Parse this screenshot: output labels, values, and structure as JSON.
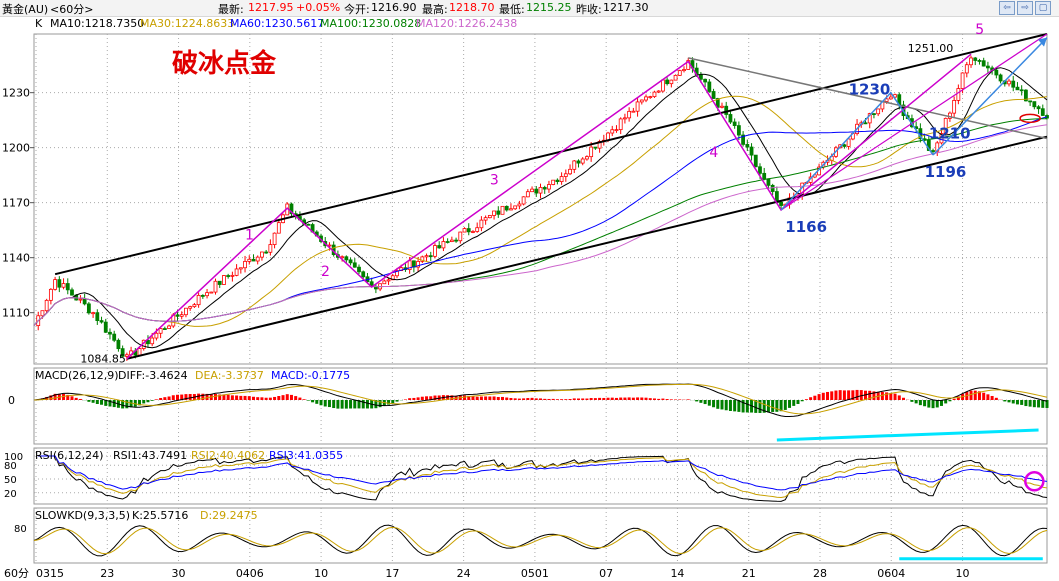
{
  "header": {
    "instrument": "黃金(AU)",
    "period": "<60分>",
    "latest_label": "最新:",
    "latest_value": "1217.95",
    "change": "+0.05%",
    "open_label": "今开:",
    "open_value": "1216.90",
    "high_label": "最高:",
    "high_value": "1218.70",
    "low_label": "最低:",
    "low_value": "1215.25",
    "prevclose_label": "昨收:",
    "prevclose_value": "1217.30"
  },
  "window_buttons": [
    "⇦",
    "⇨",
    "▢"
  ],
  "ma_legend": {
    "k": "K",
    "ma10": "MA10:1218.7350",
    "ma30": "MA30:1224.8633",
    "ma60": "MA60:1230.5617",
    "ma100": "MA100:1230.0828",
    "ma120": "MA120:1226.2438"
  },
  "overlay_title": "破冰点金",
  "macd_legend": {
    "name": "MACD(26,12,9)",
    "diff": "DIFF:-3.4624",
    "dea": "DEA:-3.3737",
    "macd": "MACD:-0.1775"
  },
  "rsi_legend": {
    "name": "RSI(6,12,24)",
    "rsi1": "RSI1:43.7491",
    "rsi2": "RSI2:40.4062",
    "rsi3": "RSI3:41.0355"
  },
  "kd_legend": {
    "name": "SLOWKD(9,3,3,5)",
    "k": "K:25.5716",
    "d": "D:29.2475"
  },
  "period_corner": "60分",
  "colors": {
    "up": "#ff0000",
    "down": "#008000",
    "ma10": "#000000",
    "ma30": "#c8a000",
    "ma60": "#0000ff",
    "ma100": "#008000",
    "ma120": "#cc66cc",
    "wave": "#cc00cc",
    "annotation_blue": "#1a3db8",
    "cyan": "#00e5ff"
  },
  "chart_data": [
    {
      "type": "candlestick",
      "title": "",
      "x_tick_labels": [
        "0315",
        "23",
        "30",
        "0406",
        "10",
        "17",
        "24",
        "0501",
        "07",
        "14",
        "21",
        "28",
        "0604",
        "10"
      ],
      "y_tick_labels": [
        "1110",
        "1140",
        "1170",
        "1200",
        "1230"
      ],
      "ylim": [
        1082,
        1262
      ],
      "price_path": [
        {
          "x": 0,
          "y": 1103
        },
        {
          "x": 5,
          "y": 1128
        },
        {
          "x": 14,
          "y": 1110
        },
        {
          "x": 20,
          "y": 1092
        },
        {
          "x": 22,
          "y": 1084.85
        },
        {
          "x": 40,
          "y": 1120
        },
        {
          "x": 55,
          "y": 1145
        },
        {
          "x": 60,
          "y": 1167
        },
        {
          "x": 68,
          "y": 1150
        },
        {
          "x": 80,
          "y": 1124
        },
        {
          "x": 92,
          "y": 1140
        },
        {
          "x": 110,
          "y": 1165
        },
        {
          "x": 125,
          "y": 1185
        },
        {
          "x": 145,
          "y": 1227
        },
        {
          "x": 155,
          "y": 1247
        },
        {
          "x": 165,
          "y": 1214
        },
        {
          "x": 177,
          "y": 1166
        },
        {
          "x": 190,
          "y": 1198
        },
        {
          "x": 203,
          "y": 1230
        },
        {
          "x": 213,
          "y": 1196
        },
        {
          "x": 222,
          "y": 1251
        },
        {
          "x": 230,
          "y": 1237
        },
        {
          "x": 240,
          "y": 1218
        }
      ],
      "price_labels": [
        "1084.85",
        "1251.00"
      ],
      "wave_labels": [
        "1",
        "2",
        "3",
        "4",
        "5"
      ],
      "annotation_labels": [
        "1166",
        "1230",
        "1196",
        "1210"
      ],
      "channel_upper": [
        {
          "x": 5,
          "y": 1131
        },
        {
          "x": 240,
          "y": 1262
        }
      ],
      "channel_lower": [
        {
          "x": 22,
          "y": 1084.85
        },
        {
          "x": 240,
          "y": 1206
        }
      ],
      "resistance_line": [
        {
          "x": 155,
          "y": 1249
        },
        {
          "x": 240,
          "y": 1205
        }
      ]
    },
    {
      "type": "bar",
      "title": "MACD(26,12,9)",
      "y_tick_labels": [
        "0"
      ],
      "series": [
        {
          "name": "DIFF",
          "value": -3.4624
        },
        {
          "name": "DEA",
          "value": -3.3737
        },
        {
          "name": "MACD",
          "value": -0.1775
        }
      ]
    },
    {
      "type": "line",
      "title": "RSI(6,12,24)",
      "y_tick_labels": [
        "100",
        "80",
        "50",
        "20"
      ],
      "ylim": [
        0,
        100
      ],
      "series": [
        {
          "name": "RSI1",
          "value": 43.7491
        },
        {
          "name": "RSI2",
          "value": 40.4062
        },
        {
          "name": "RSI3",
          "value": 41.0355
        }
      ]
    },
    {
      "type": "line",
      "title": "SLOWKD(9,3,3,5)",
      "y_tick_labels": [
        "80"
      ],
      "ylim": [
        0,
        100
      ],
      "series": [
        {
          "name": "K",
          "value": 25.5716
        },
        {
          "name": "D",
          "value": 29.2475
        }
      ]
    }
  ]
}
